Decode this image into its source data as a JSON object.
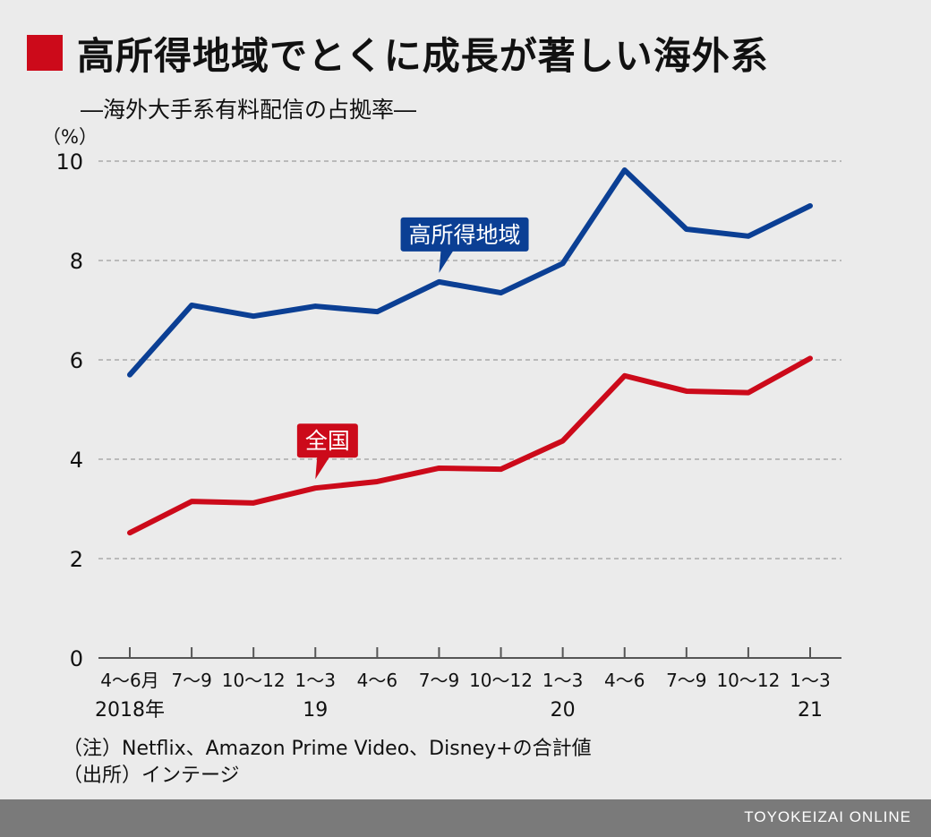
{
  "title": "高所得地域でとくに成長が著しい海外系",
  "subtitle": "―海外大手系有料配信の占拠率―",
  "notes": {
    "line1": "（注）Netflix、Amazon Prime Video、Disney+の合計値",
    "line2": "（出所）インテージ"
  },
  "footer": {
    "brand": "TOYOKEIZAI ONLINE"
  },
  "colors": {
    "accent": "#cc0a1a",
    "high_income": "#0b3f94",
    "nationwide": "#cc0a1a",
    "grid": "#aaaaaa",
    "axis": "#555555"
  },
  "chart_data": {
    "type": "line",
    "ylabel": "（%）",
    "ylim": [
      0,
      10
    ],
    "yticks": [
      "0",
      "2",
      "4",
      "6",
      "8",
      "10"
    ],
    "categories": [
      "4〜6月",
      "7〜9",
      "10〜12",
      "1〜3",
      "4〜6",
      "7〜9",
      "10〜12",
      "1〜3",
      "4〜6",
      "7〜9",
      "10〜12",
      "1〜3"
    ],
    "year_labels": [
      {
        "index": 0,
        "label": "2018年"
      },
      {
        "index": 3,
        "label": "19"
      },
      {
        "index": 7,
        "label": "20"
      },
      {
        "index": 11,
        "label": "21"
      }
    ],
    "grid": true,
    "series": [
      {
        "name": "高所得地域",
        "color": "#0b3f94",
        "values": [
          5.7,
          7.1,
          6.88,
          7.08,
          6.97,
          7.57,
          7.35,
          7.94,
          9.82,
          8.63,
          8.49,
          9.1
        ],
        "label_at": 5
      },
      {
        "name": "全国",
        "color": "#cc0a1a",
        "values": [
          2.52,
          3.15,
          3.12,
          3.42,
          3.55,
          3.82,
          3.8,
          4.37,
          5.68,
          5.37,
          5.34,
          6.03
        ],
        "label_at": 3
      }
    ]
  }
}
